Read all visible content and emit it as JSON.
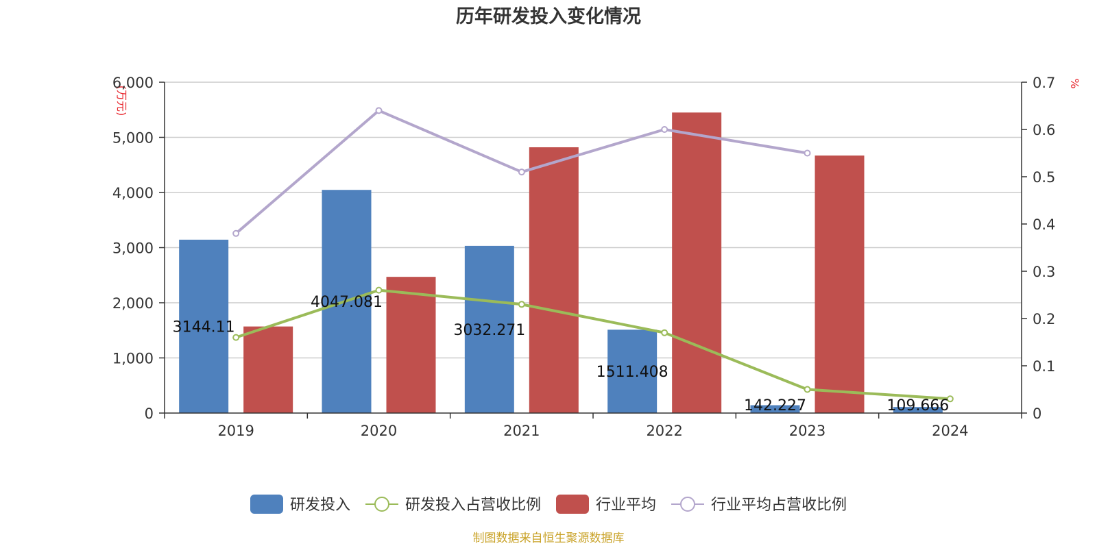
{
  "chart_data": {
    "type": "bar",
    "title": "历年研发投入变化情况",
    "categories": [
      "2019",
      "2020",
      "2021",
      "2022",
      "2023",
      "2024"
    ],
    "y_left": {
      "unit": "(万元)",
      "ylim": [
        0,
        6000
      ],
      "ticks": [
        0,
        1000,
        2000,
        3000,
        4000,
        5000,
        6000
      ],
      "tick_labels": [
        "0",
        "1,000",
        "2,000",
        "3,000",
        "4,000",
        "5,000",
        "6,000"
      ]
    },
    "y_right": {
      "unit": "%",
      "ylim": [
        0,
        0.7
      ],
      "ticks": [
        0,
        0.1,
        0.2,
        0.3,
        0.4,
        0.5,
        0.6,
        0.7
      ],
      "tick_labels": [
        "0",
        "0.1",
        "0.2",
        "0.3",
        "0.4",
        "0.5",
        "0.6",
        "0.7"
      ]
    },
    "grid": true,
    "legend_position": "bottom",
    "series": [
      {
        "name": "研发投入",
        "type": "bar",
        "axis": "left",
        "color": "#4f81bd",
        "values": [
          3144.11,
          4047.081,
          3032.271,
          1511.408,
          142.227,
          109.666
        ],
        "labels": [
          "3144.11",
          "4047.081",
          "3032.271",
          "1511.408",
          "142.227",
          "109.666"
        ]
      },
      {
        "name": "研发投入占营收比例",
        "type": "line",
        "axis": "right",
        "color": "#9bbb59",
        "values": [
          0.16,
          0.26,
          0.23,
          0.17,
          0.05,
          0.03
        ]
      },
      {
        "name": "行业平均",
        "type": "bar",
        "axis": "left",
        "color": "#c0504d",
        "values": [
          1570,
          2470,
          4820,
          5450,
          4670,
          null
        ]
      },
      {
        "name": "行业平均占营收比例",
        "type": "line",
        "axis": "right",
        "color": "#b3a6cc",
        "values": [
          0.38,
          0.64,
          0.51,
          0.6,
          0.55,
          null
        ]
      }
    ],
    "source": "制图数据来自恒生聚源数据库"
  }
}
